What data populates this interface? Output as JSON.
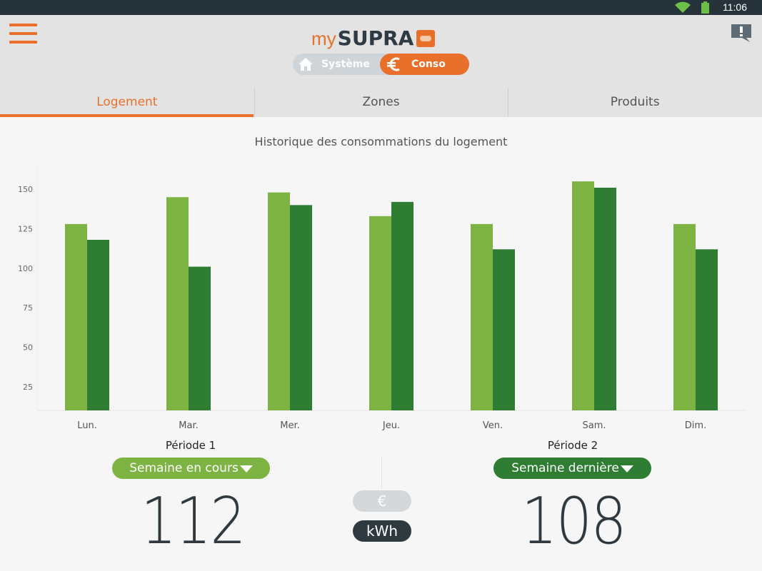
{
  "status": {
    "time": "11:06"
  },
  "header": {
    "logo_my": "my",
    "logo_brand": "SUPRA",
    "mode_toggle": {
      "system_label": "Système",
      "conso_label": "Conso",
      "active": "conso"
    }
  },
  "tabs": [
    {
      "label": "Logement",
      "active": true
    },
    {
      "label": "Zones",
      "active": false
    },
    {
      "label": "Produits",
      "active": false
    }
  ],
  "chart_data": {
    "type": "bar",
    "title": "Historique des consommations du logement",
    "categories": [
      "Lun.",
      "Mar.",
      "Mer.",
      "Jeu.",
      "Ven.",
      "Sam.",
      "Dim."
    ],
    "series": [
      {
        "values": [
          128,
          145,
          148,
          133,
          128,
          155,
          128
        ],
        "color": "#7cb342"
      },
      {
        "values": [
          118,
          101,
          140,
          142,
          112,
          151,
          112
        ],
        "color": "#2e7d32"
      }
    ],
    "yticks": [
      25,
      50,
      75,
      100,
      125,
      150
    ],
    "ylim": [
      10,
      165
    ],
    "legend": "none",
    "grid": false
  },
  "period1": {
    "label": "Période 1",
    "select": "Semaine en cours",
    "value": "112",
    "color": "#7cb342"
  },
  "period2": {
    "label": "Période 2",
    "select": "Semaine dernière",
    "value": "108",
    "color": "#2e7d32"
  },
  "units": {
    "euro": "€",
    "kwh": "kWh",
    "active": "kwh"
  },
  "colors": {
    "accent": "#e8702a",
    "dark": "#2f3a40"
  }
}
